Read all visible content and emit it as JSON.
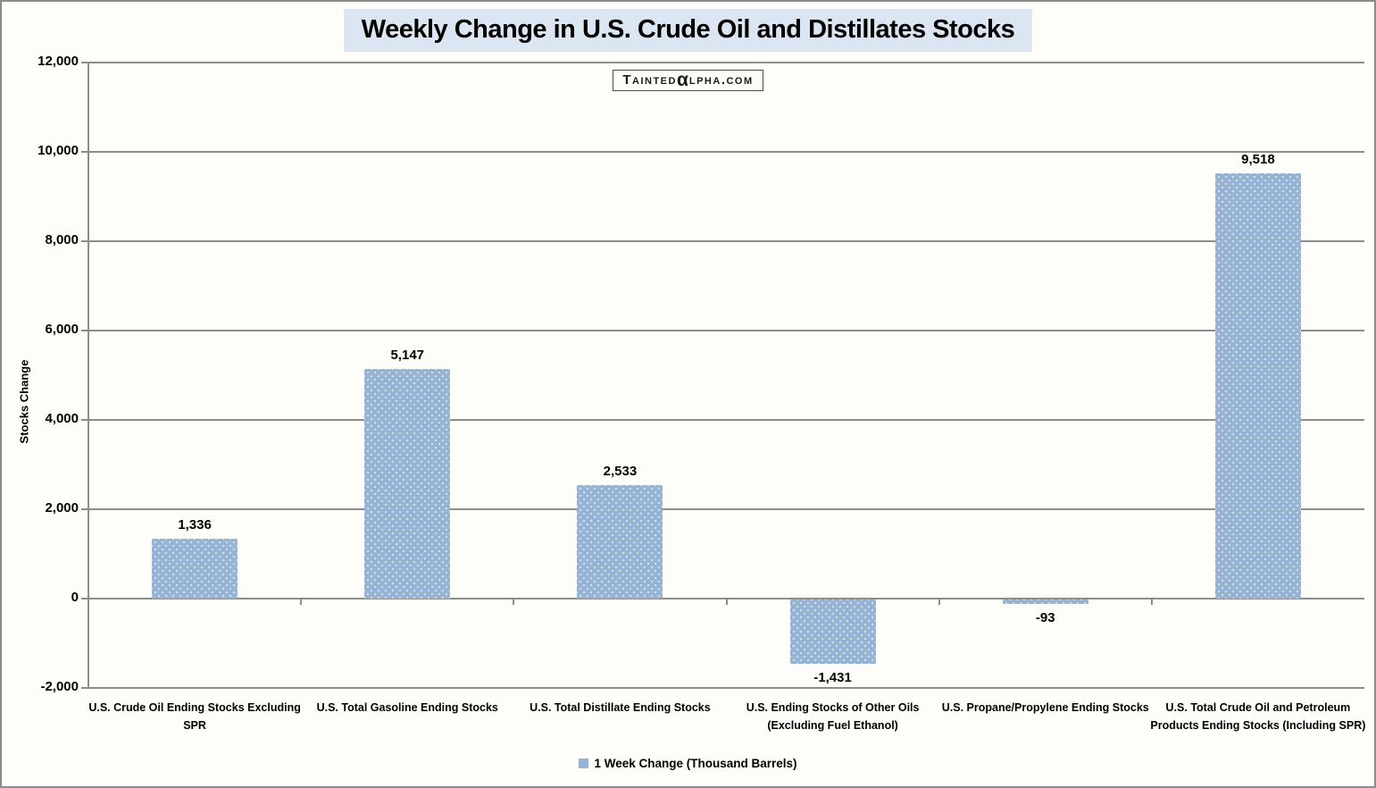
{
  "colors": {
    "bar_fill": "#95B3D7",
    "title_background": "#DCE6F2",
    "gridline": "#8c8c89",
    "watermark_alpha_blue": "#2E9BD6",
    "figure_background": "#FDFDFA",
    "text": "#000000"
  },
  "watermark": {
    "part1": "Tainted",
    "alpha_glyph": "α",
    "part2": "lpha.com"
  },
  "chart_data": {
    "type": "bar",
    "title": "Weekly Change in U.S. Crude Oil and Distillates Stocks",
    "ylabel": "Stocks Change",
    "xlabel": "",
    "categories": [
      "U.S. Crude Oil Ending Stocks Excluding SPR",
      "U.S. Total Gasoline Ending Stocks",
      "U.S. Total Distillate Ending Stocks",
      "U.S. Ending Stocks of Other Oils (Excluding Fuel Ethanol)",
      "U.S. Propane/Propylene Ending Stocks",
      "U.S. Total Crude Oil and Petroleum Products Ending Stocks (Including SPR)"
    ],
    "values": [
      1336,
      5147,
      2533,
      -1431,
      -93,
      9518
    ],
    "value_labels": [
      "1,336",
      "5,147",
      "2,533",
      "-1,431",
      "-93",
      "9,518"
    ],
    "ylim": [
      -2000,
      12000
    ],
    "ytick_step": 2000,
    "ytick_labels_top_to_bottom": [
      "12,000",
      "10,000",
      "8,000",
      "6,000",
      "4,000",
      "2,000",
      "0",
      "-2,000"
    ],
    "grid": true,
    "legend": {
      "label": "1 Week Change (Thousand Barrels)",
      "position": "bottom-center"
    }
  }
}
